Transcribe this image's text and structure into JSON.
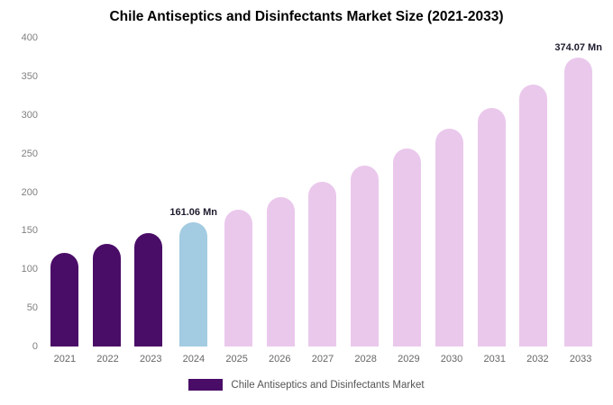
{
  "title": "Chile Antiseptics and Disinfectants Market Size (2021-2033)",
  "legend": {
    "label": "Chile Antiseptics and Disinfectants Market",
    "swatch_color": "#4A0D67"
  },
  "colors": {
    "historical": "#4A0D67",
    "current": "#A3CBE1",
    "forecast": "#EAC8EC"
  },
  "chart_data": {
    "type": "bar",
    "title": "Chile Antiseptics and Disinfectants Market Size (2021-2033)",
    "categories": [
      "2021",
      "2022",
      "2023",
      "2024",
      "2025",
      "2026",
      "2027",
      "2028",
      "2029",
      "2030",
      "2031",
      "2032",
      "2033"
    ],
    "values": [
      121,
      133,
      146.5,
      161.06,
      176.8,
      194.1,
      213.1,
      233.9,
      256.8,
      281.9,
      309.5,
      339.7,
      374.07
    ],
    "bar_roles": [
      "historical",
      "historical",
      "historical",
      "current",
      "forecast",
      "forecast",
      "forecast",
      "forecast",
      "forecast",
      "forecast",
      "forecast",
      "forecast",
      "forecast"
    ],
    "annotations": [
      {
        "category": "2024",
        "text": "161.06 Mn"
      },
      {
        "category": "2033",
        "text": "374.07 Mn"
      }
    ],
    "xlabel": "",
    "ylabel": "",
    "ylim": [
      0,
      400
    ],
    "ytick_step": 50,
    "grid": false,
    "legend_position": "bottom",
    "legend_entries": [
      "Chile Antiseptics and Disinfectants Market"
    ]
  }
}
